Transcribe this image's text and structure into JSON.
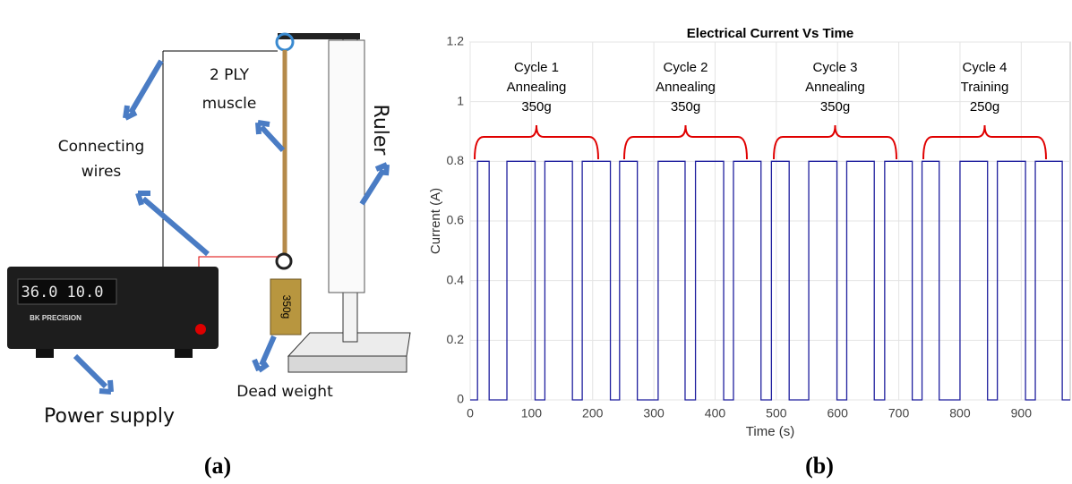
{
  "diagram": {
    "labels": {
      "muscle": [
        "2 PLY",
        "muscle"
      ],
      "wires": [
        "Connecting",
        "wires"
      ],
      "ruler": "Ruler",
      "power_supply": "Power supply",
      "dead_weight": "Dead weight",
      "weight_mass": "350g",
      "display": [
        "36.0",
        "10.0"
      ],
      "brand": "BK PRECISION"
    }
  },
  "chart_data": {
    "type": "line",
    "title": "Electrical Current Vs Time",
    "xlabel": "Time (s)",
    "ylabel": "Current (A)",
    "x": [
      0,
      12,
      12,
      31,
      31,
      60,
      60,
      106,
      106,
      122,
      122,
      167,
      167,
      183,
      183,
      229,
      229,
      244,
      244,
      273,
      273,
      307,
      307,
      351,
      351,
      368,
      368,
      414,
      414,
      430,
      430,
      475,
      475,
      492,
      492,
      521,
      521,
      553,
      553,
      599,
      599,
      615,
      615,
      660,
      660,
      677,
      677,
      722,
      722,
      738,
      738,
      766,
      766,
      800,
      800,
      845,
      845,
      861,
      861,
      907,
      907,
      923,
      923,
      967,
      967,
      980
    ],
    "values": [
      0,
      0,
      0.8,
      0.8,
      0,
      0,
      0.8,
      0.8,
      0,
      0,
      0.8,
      0.8,
      0,
      0,
      0.8,
      0.8,
      0,
      0,
      0.8,
      0.8,
      0,
      0,
      0.8,
      0.8,
      0,
      0,
      0.8,
      0.8,
      0,
      0,
      0.8,
      0.8,
      0,
      0,
      0.8,
      0.8,
      0,
      0,
      0.8,
      0.8,
      0,
      0,
      0.8,
      0.8,
      0,
      0,
      0.8,
      0.8,
      0,
      0,
      0.8,
      0.8,
      0,
      0,
      0.8,
      0.8,
      0,
      0,
      0.8,
      0.8,
      0,
      0,
      0.8,
      0.8,
      0,
      0
    ],
    "color": "#1f1f9e",
    "xlim": [
      0,
      980
    ],
    "ylim": [
      0,
      1.2
    ],
    "xticks": [
      0,
      100,
      200,
      300,
      400,
      500,
      600,
      700,
      800,
      900
    ],
    "yticks": [
      0,
      0.2,
      0.4,
      0.6,
      0.8,
      1,
      1.2
    ],
    "grid": true,
    "annotations": [
      [
        "Cycle 1",
        "Annealing",
        "350g"
      ],
      [
        "Cycle 2",
        "Annealing",
        "350g"
      ],
      [
        "Cycle 3",
        "Annealing",
        "350g"
      ],
      [
        "Cycle 4",
        "Training",
        "250g"
      ]
    ],
    "annotation_color": "#e00000"
  },
  "captions": [
    "(a)",
    "(b)"
  ]
}
